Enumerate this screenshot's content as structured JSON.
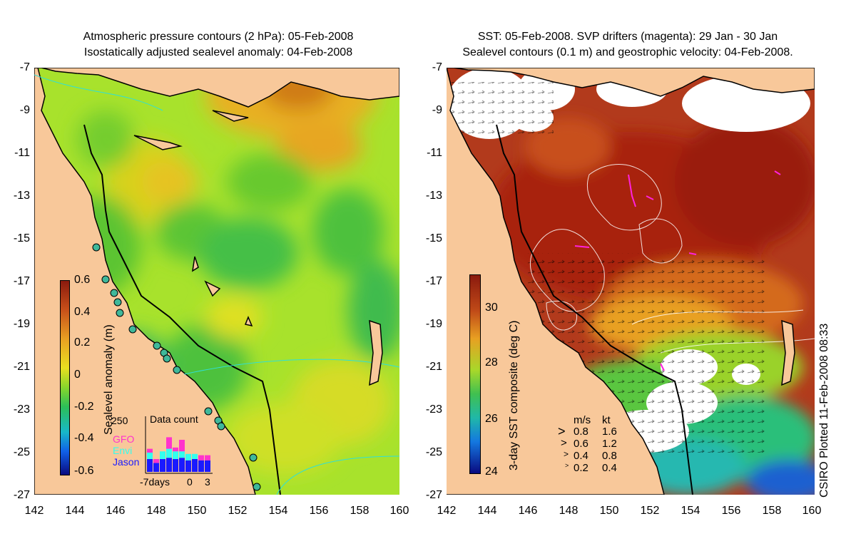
{
  "left_panel": {
    "title_line1": "Atmospheric pressure contours (2 hPa): 05-Feb-2008",
    "title_line2": "Isostatically adjusted sealevel anomaly: 04-Feb-2008",
    "y_ticks": [
      "-7",
      "-9",
      "-11",
      "-13",
      "-15",
      "-17",
      "-19",
      "-21",
      "-23",
      "-25",
      "-27"
    ],
    "x_ticks": [
      "142",
      "144",
      "146",
      "148",
      "150",
      "152",
      "154",
      "156",
      "158",
      "160"
    ],
    "colorbar": {
      "label": "Sealevel anomaly (m)",
      "ticks": [
        "0.6",
        "0.4",
        "0.2",
        "0",
        "-0.2",
        "-0.4",
        "-0.6"
      ],
      "range": [
        -0.6,
        0.6
      ]
    },
    "inset": {
      "title": "Data count",
      "ymax_label": "250",
      "series": [
        {
          "name": "GFO",
          "color": "#ff33cc"
        },
        {
          "name": "Envi",
          "color": "#33ffee"
        },
        {
          "name": "Jason",
          "color": "#1a1aff"
        }
      ],
      "x_labels": [
        "-7days",
        "0",
        "3"
      ],
      "bars": [
        {
          "jason": 1.0,
          "envi": 0.5,
          "gfo": 0.3
        },
        {
          "jason": 0.7,
          "envi": 0.0,
          "gfo": 0.3
        },
        {
          "jason": 1.0,
          "envi": 0.6,
          "gfo": 0.0
        },
        {
          "jason": 1.1,
          "envi": 0.7,
          "gfo": 0.9
        },
        {
          "jason": 1.0,
          "envi": 0.6,
          "gfo": 0.3
        },
        {
          "jason": 1.1,
          "envi": 0.5,
          "gfo": 0.9
        },
        {
          "jason": 0.9,
          "envi": 0.5,
          "gfo": 0.0
        },
        {
          "jason": 1.0,
          "envi": 0.4,
          "gfo": 0.0
        },
        {
          "jason": 0.9,
          "envi": 0.0,
          "gfo": 0.4
        },
        {
          "jason": 0.9,
          "envi": 0.0,
          "gfo": 0.4
        }
      ]
    }
  },
  "right_panel": {
    "title_line1": "SST: 05-Feb-2008. SVP drifters (magenta): 29 Jan - 30 Jan",
    "title_line2": "Sealevel contours (0.1 m) and geostrophic velocity: 04-Feb-2008.",
    "y_ticks": [
      "-7",
      "-9",
      "-11",
      "-13",
      "-15",
      "-17",
      "-19",
      "-21",
      "-23",
      "-25",
      "-27"
    ],
    "x_ticks": [
      "142",
      "144",
      "146",
      "148",
      "150",
      "152",
      "154",
      "156",
      "158",
      "160"
    ],
    "colorbar": {
      "label": "3-day SST composite (deg C)",
      "ticks": [
        "30",
        "28",
        "26",
        "24"
      ],
      "range": [
        24,
        31
      ]
    },
    "velocity_legend": {
      "header_ms": "m/s",
      "header_kt": "kt",
      "rows": [
        {
          "ms": "0.8",
          "kt": "1.6"
        },
        {
          "ms": "0.6",
          "kt": "1.2"
        },
        {
          "ms": "0.4",
          "kt": "0.8"
        },
        {
          "ms": "0.2",
          "kt": "0.4"
        }
      ]
    },
    "credit": "CSIRO Plotted 11-Feb-2008 08:33"
  },
  "colors": {
    "land": "#f8c89a",
    "coast": "#000000",
    "sla_base": "#9de02a",
    "sst_base": "#b23a1c"
  }
}
